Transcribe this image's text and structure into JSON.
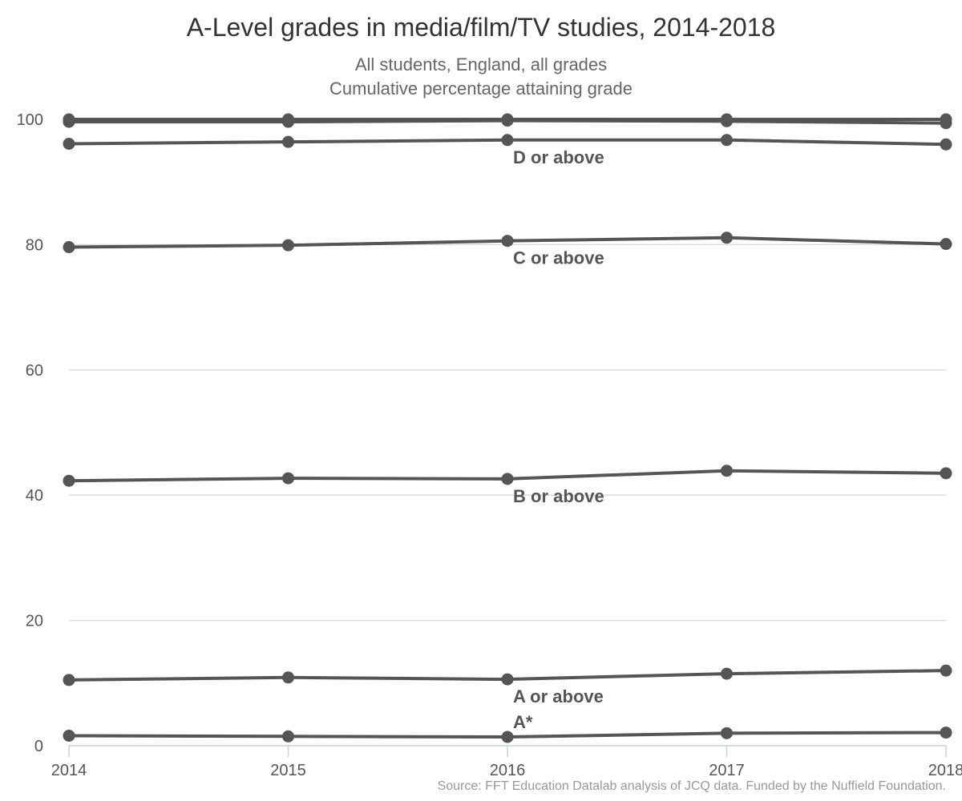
{
  "chart_data": {
    "type": "line",
    "title": "A-Level grades in media/film/TV studies, 2014-2018",
    "subtitle_lines": [
      "All students, England, all grades",
      "Cumulative percentage attaining grade"
    ],
    "source": "Source: FFT Education Datalab analysis of JCQ data. Funded by the Nuffield Foundation.",
    "x": [
      "2014",
      "2015",
      "2016",
      "2017",
      "2018"
    ],
    "xlabel": "",
    "ylabel": "",
    "ylim": [
      0,
      100
    ],
    "yticks": [
      "0",
      "20",
      "40",
      "60",
      "80",
      "100"
    ],
    "grid": true,
    "line_color": "#555555",
    "series": [
      {
        "name": "",
        "values": [
          100,
          100,
          100,
          100,
          100
        ]
      },
      {
        "name": "",
        "values": [
          99.6,
          99.6,
          99.8,
          99.7,
          99.4
        ]
      },
      {
        "name": "D or above",
        "values": [
          96.1,
          96.4,
          96.7,
          96.7,
          96.0
        ]
      },
      {
        "name": "C or above",
        "values": [
          79.6,
          79.9,
          80.6,
          81.1,
          80.1
        ]
      },
      {
        "name": "B or above",
        "values": [
          42.3,
          42.7,
          42.6,
          43.9,
          43.5
        ]
      },
      {
        "name": "A or above",
        "values": [
          10.5,
          10.9,
          10.6,
          11.5,
          12.0
        ]
      },
      {
        "name": "A*",
        "values": [
          1.6,
          1.5,
          1.4,
          2.0,
          2.1
        ]
      }
    ]
  }
}
